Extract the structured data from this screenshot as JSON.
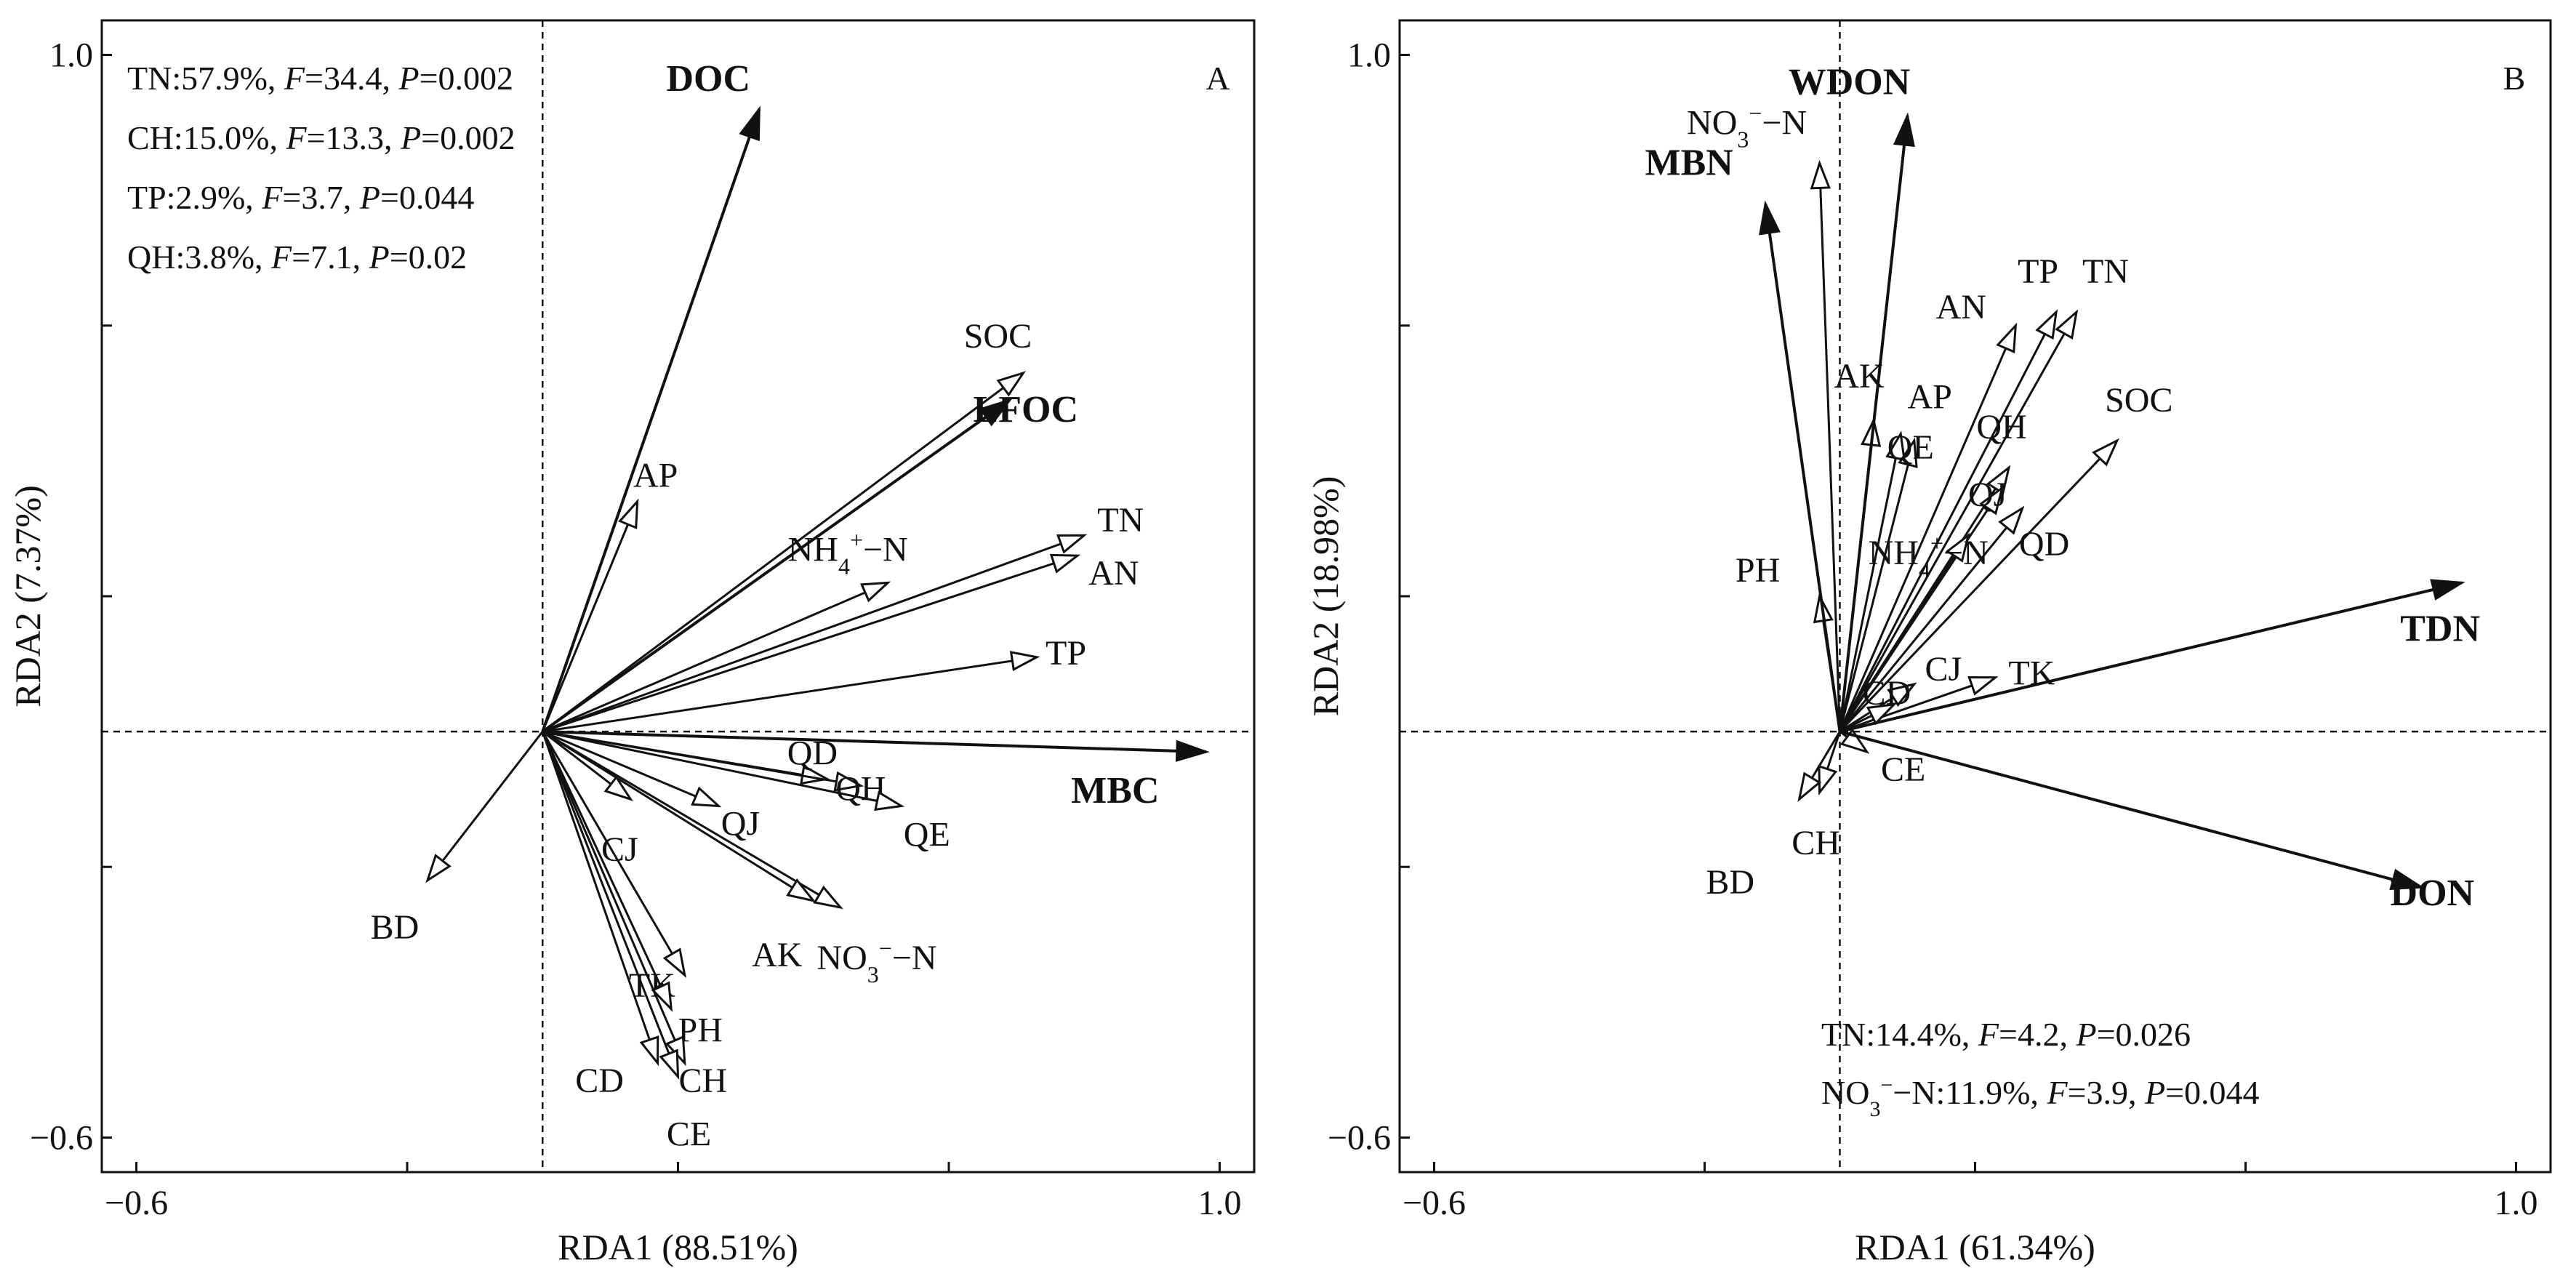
{
  "chart_data": [
    {
      "type": "scatter",
      "panel": "A",
      "xlabel": "RDA1 (88.51%)",
      "ylabel": "RDA2 (7.37%)",
      "xlim": [
        -0.6,
        1.0
      ],
      "ylim": [
        -0.6,
        1.0
      ],
      "xticks": [
        "-0.6",
        "1.0"
      ],
      "yticks": [
        "1.0",
        "-0.6"
      ],
      "grid": false,
      "origin_lines": true,
      "stats": [
        {
          "name": "TN",
          "pct": "57.9%",
          "F": "34.4",
          "P": "0.002"
        },
        {
          "name": "CH",
          "pct": "15.0%",
          "F": "13.3",
          "P": "0.002"
        },
        {
          "name": "TP",
          "pct": "2.9%",
          "F": "3.7",
          "P": "0.044"
        },
        {
          "name": "QH",
          "pct": "3.8%",
          "F": "7.1",
          "P": "0.02"
        }
      ],
      "response_vectors": [
        {
          "label": "DOC",
          "x": 0.32,
          "y": 0.92
        },
        {
          "label": "LFOC",
          "x": 0.69,
          "y": 0.49
        },
        {
          "label": "MBC",
          "x": 0.98,
          "y": -0.03
        }
      ],
      "explanatory_vectors": [
        {
          "label": "SOC",
          "x": 0.71,
          "y": 0.53
        },
        {
          "label": "AP",
          "x": 0.14,
          "y": 0.34
        },
        {
          "label": "TN",
          "x": 0.8,
          "y": 0.29
        },
        {
          "label": "AN",
          "x": 0.79,
          "y": 0.26
        },
        {
          "label": "NH4+-N",
          "x": 0.51,
          "y": 0.22
        },
        {
          "label": "TP",
          "x": 0.73,
          "y": 0.11
        },
        {
          "label": "QD",
          "x": 0.42,
          "y": -0.07
        },
        {
          "label": "QH",
          "x": 0.47,
          "y": -0.08
        },
        {
          "label": "QE",
          "x": 0.53,
          "y": -0.11
        },
        {
          "label": "QJ",
          "x": 0.26,
          "y": -0.11
        },
        {
          "label": "CJ",
          "x": 0.13,
          "y": -0.1
        },
        {
          "label": "NO3--N",
          "x": 0.44,
          "y": -0.26
        },
        {
          "label": "AK",
          "x": 0.4,
          "y": -0.25
        },
        {
          "label": "TK",
          "x": 0.21,
          "y": -0.36
        },
        {
          "label": "PH",
          "x": 0.19,
          "y": -0.41
        },
        {
          "label": "CD",
          "x": 0.17,
          "y": -0.49
        },
        {
          "label": "CH",
          "x": 0.21,
          "y": -0.49
        },
        {
          "label": "CE",
          "x": 0.2,
          "y": -0.51
        },
        {
          "label": "BD",
          "x": -0.17,
          "y": -0.22
        }
      ]
    },
    {
      "type": "scatter",
      "panel": "B",
      "xlabel": "RDA1 (61.34%)",
      "ylabel": "RDA2 (18.98%)",
      "xlim": [
        -0.6,
        1.0
      ],
      "ylim": [
        -0.6,
        1.0
      ],
      "xticks": [
        "-0.6",
        "1.0"
      ],
      "yticks": [
        "1.0",
        "-0.6"
      ],
      "grid": false,
      "origin_lines": true,
      "stats": [
        {
          "name": "TN",
          "pct": "14.4%",
          "F": "4.2",
          "P": "0.026"
        },
        {
          "name": "NO3--N",
          "pct": "11.9%",
          "F": "3.9",
          "P": "0.044"
        }
      ],
      "response_vectors": [
        {
          "label": "WDON",
          "x": 0.1,
          "y": 0.91
        },
        {
          "label": "MBN",
          "x": -0.11,
          "y": 0.78
        },
        {
          "label": "TDN",
          "x": 0.92,
          "y": 0.22
        },
        {
          "label": "DON",
          "x": 0.86,
          "y": -0.23
        }
      ],
      "explanatory_vectors": [
        {
          "label": "NO3--N",
          "x": -0.03,
          "y": 0.84
        },
        {
          "label": "TP",
          "x": 0.32,
          "y": 0.62
        },
        {
          "label": "TN",
          "x": 0.35,
          "y": 0.62
        },
        {
          "label": "AN",
          "x": 0.26,
          "y": 0.6
        },
        {
          "label": "AK",
          "x": 0.05,
          "y": 0.46
        },
        {
          "label": "AP",
          "x": 0.09,
          "y": 0.44
        },
        {
          "label": "QE",
          "x": 0.11,
          "y": 0.43
        },
        {
          "label": "SOC",
          "x": 0.41,
          "y": 0.43
        },
        {
          "label": "QH",
          "x": 0.25,
          "y": 0.39
        },
        {
          "label": "QJ",
          "x": 0.24,
          "y": 0.36
        },
        {
          "label": "NH4+-N",
          "x": 0.19,
          "y": 0.29
        },
        {
          "label": "QD",
          "x": 0.27,
          "y": 0.33
        },
        {
          "label": "PH",
          "x": -0.03,
          "y": 0.2
        },
        {
          "label": "CJ",
          "x": 0.11,
          "y": 0.07
        },
        {
          "label": "TK",
          "x": 0.23,
          "y": 0.08
        },
        {
          "label": "CD",
          "x": 0.08,
          "y": 0.04
        },
        {
          "label": "CE",
          "x": 0.04,
          "y": -0.03
        },
        {
          "label": "CH",
          "x": -0.03,
          "y": -0.09
        },
        {
          "label": "BD",
          "x": -0.06,
          "y": -0.1
        }
      ]
    }
  ]
}
